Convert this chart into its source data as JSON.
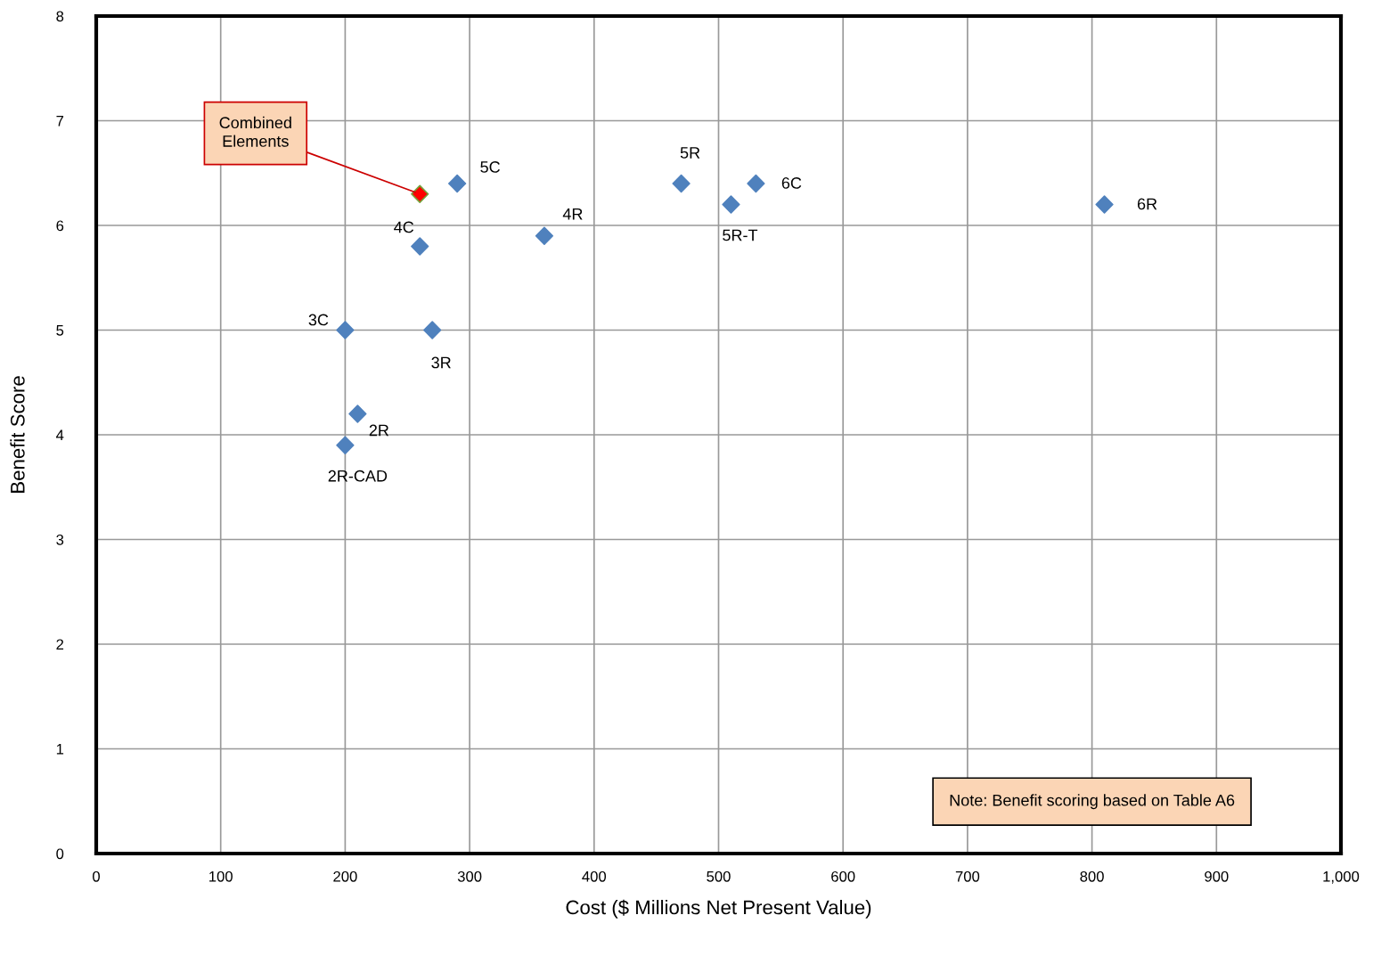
{
  "chart_data": {
    "type": "scatter",
    "xlabel": "Cost ($ Millions Net Present Value)",
    "ylabel": "Benefit Score",
    "xlim": [
      0,
      1000
    ],
    "xticks": [
      0,
      100,
      200,
      300,
      400,
      500,
      600,
      700,
      800,
      900,
      {
        "value": 1000,
        "label": "1,000"
      }
    ],
    "ylim": [
      0,
      8
    ],
    "yticks": [
      0,
      1,
      2,
      3,
      4,
      5,
      6,
      7,
      8
    ],
    "grid": true,
    "legend": false,
    "marker": "diamond",
    "series": [
      {
        "color": "#4f81bd",
        "x": [
          200,
          210,
          200,
          270,
          260,
          290,
          360,
          470,
          510,
          530,
          810
        ],
        "values": [
          3.9,
          4.2,
          5.0,
          5.0,
          5.8,
          6.4,
          5.9,
          6.4,
          6.2,
          6.4,
          6.2
        ]
      },
      {
        "color": "#ff0000",
        "x": [
          260
        ],
        "values": [
          6.3
        ]
      }
    ],
    "annotations": [
      {
        "text": "2R-CAD",
        "x": 200,
        "y": 3.9
      },
      {
        "text": "2R",
        "x": 210,
        "y": 4.2
      },
      {
        "text": "3C",
        "x": 200,
        "y": 5.0
      },
      {
        "text": "3R",
        "x": 270,
        "y": 5.0
      },
      {
        "text": "4C",
        "x": 260,
        "y": 5.8
      },
      {
        "text": "5C",
        "x": 290,
        "y": 6.4
      },
      {
        "text": "4R",
        "x": 360,
        "y": 5.9
      },
      {
        "text": "5R",
        "x": 470,
        "y": 6.4
      },
      {
        "text": "5R-T",
        "x": 510,
        "y": 6.2
      },
      {
        "text": "6C",
        "x": 530,
        "y": 6.4
      },
      {
        "text": "6R",
        "x": 810,
        "y": 6.2
      },
      {
        "text": "Combined\nElements",
        "x": 260,
        "y": 6.3
      },
      "Note: Benefit scoring based on Table A6"
    ]
  }
}
